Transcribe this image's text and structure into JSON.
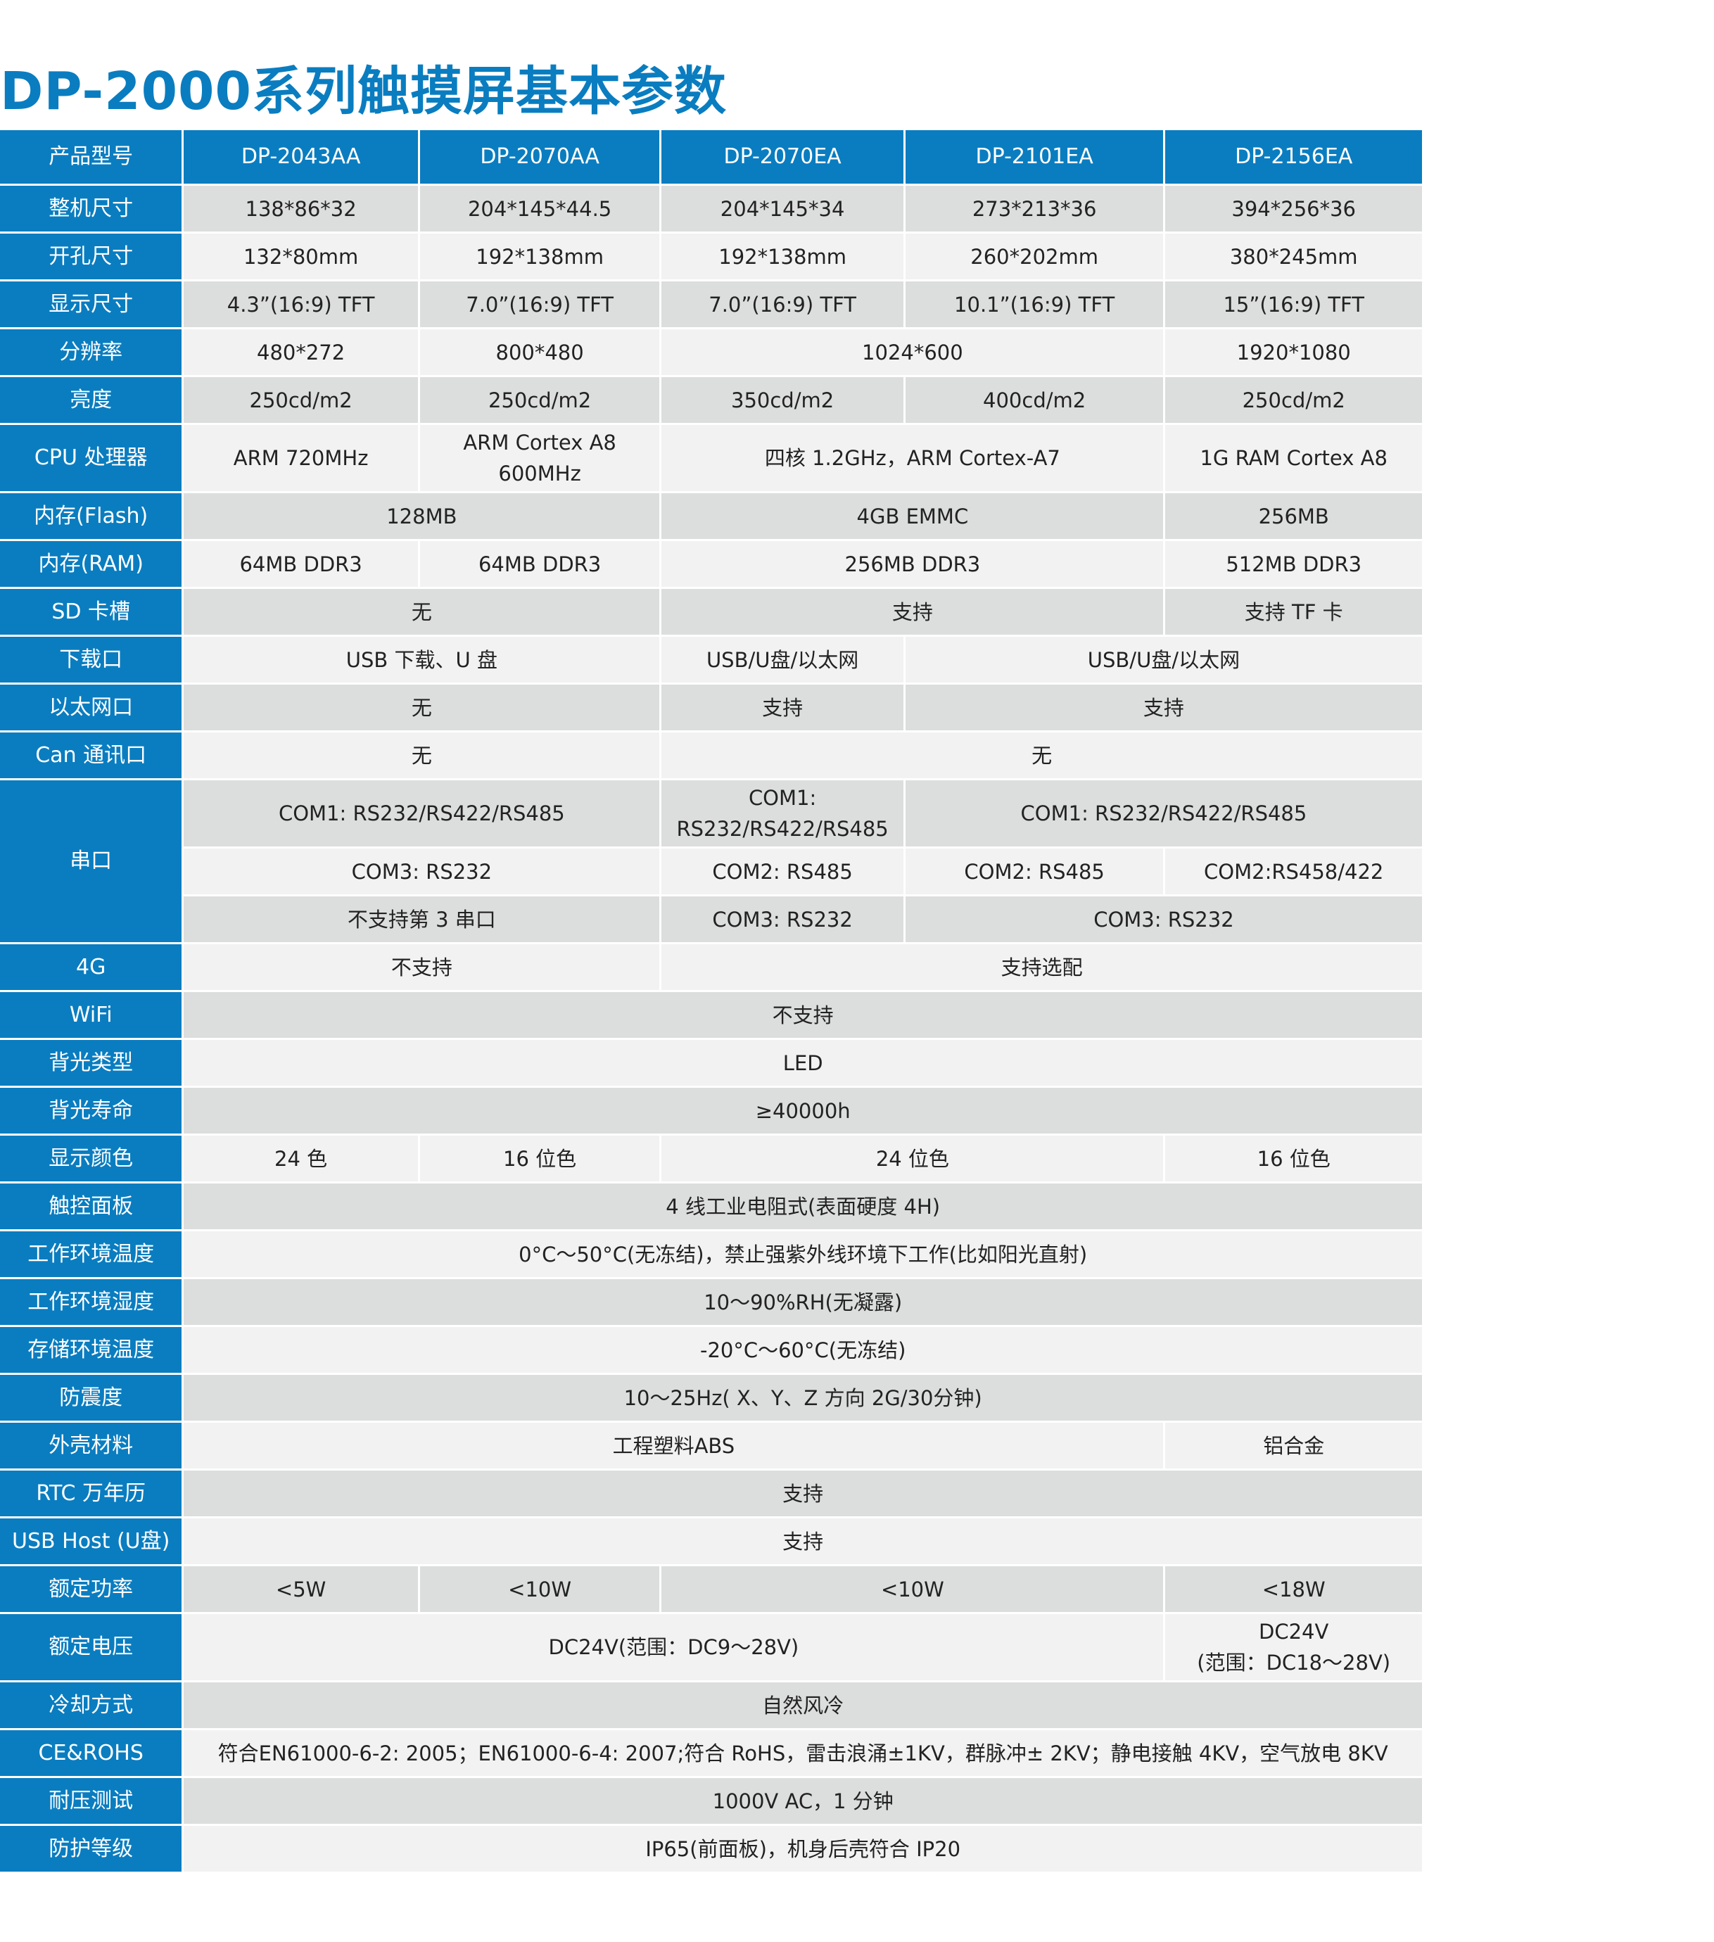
{
  "title": "DP-2000系列触摸屏基本参数",
  "colors": {
    "accent": "#0a7dc0",
    "row_dark": "#dcdddd",
    "row_light": "#f2f2f2"
  },
  "header": {
    "label": "产品型号",
    "models": [
      "DP-2043AA",
      "DP-2070AA",
      "DP-2070EA",
      "DP-2101EA",
      "DP-2156EA"
    ]
  },
  "rows": [
    {
      "label": "整机尺寸",
      "cells": [
        {
          "t": "138*86*32",
          "c": 1
        },
        {
          "t": "204*145*44.5",
          "c": 1
        },
        {
          "t": "204*145*34",
          "c": 1
        },
        {
          "t": "273*213*36",
          "c": 1
        },
        {
          "t": "394*256*36",
          "c": 1
        }
      ]
    },
    {
      "label": "开孔尺寸",
      "cells": [
        {
          "t": "132*80mm",
          "c": 1
        },
        {
          "t": "192*138mm",
          "c": 1
        },
        {
          "t": "192*138mm",
          "c": 1
        },
        {
          "t": "260*202mm",
          "c": 1
        },
        {
          "t": "380*245mm",
          "c": 1
        }
      ]
    },
    {
      "label": "显示尺寸",
      "cells": [
        {
          "t": "4.3”(16:9) TFT",
          "c": 1
        },
        {
          "t": "7.0”(16:9) TFT",
          "c": 1
        },
        {
          "t": "7.0”(16:9) TFT",
          "c": 1
        },
        {
          "t": "10.1”(16:9) TFT",
          "c": 1
        },
        {
          "t": "15”(16:9) TFT",
          "c": 1
        }
      ]
    },
    {
      "label": "分辨率",
      "cells": [
        {
          "t": "480*272",
          "c": 1
        },
        {
          "t": "800*480",
          "c": 1
        },
        {
          "t": "1024*600",
          "c": 2
        },
        {
          "t": "1920*1080",
          "c": 1
        }
      ]
    },
    {
      "label": "亮度",
      "cells": [
        {
          "t": "250cd/m2",
          "c": 1
        },
        {
          "t": "250cd/m2",
          "c": 1
        },
        {
          "t": "350cd/m2",
          "c": 1
        },
        {
          "t": "400cd/m2",
          "c": 1
        },
        {
          "t": "250cd/m2",
          "c": 1
        }
      ]
    },
    {
      "label": "CPU 处理器",
      "tall": true,
      "cells": [
        {
          "t": "ARM   720MHz",
          "c": 1
        },
        {
          "t": "ARM   Cortex   A8\n600MHz",
          "c": 1
        },
        {
          "t": "四核 1.2GHz，ARM Cortex-A7",
          "c": 2
        },
        {
          "t": "1G RAM Cortex A8",
          "c": 1
        }
      ]
    },
    {
      "label": "内存(Flash)",
      "cells": [
        {
          "t": "128MB",
          "c": 2
        },
        {
          "t": "4GB EMMC",
          "c": 2
        },
        {
          "t": "256MB",
          "c": 1
        }
      ]
    },
    {
      "label": "内存(RAM)",
      "cells": [
        {
          "t": "64MB  DDR3",
          "c": 1
        },
        {
          "t": "64MB  DDR3",
          "c": 1
        },
        {
          "t": "256MB  DDR3",
          "c": 2
        },
        {
          "t": "512MB  DDR3",
          "c": 1
        }
      ]
    },
    {
      "label": "SD 卡槽",
      "cells": [
        {
          "t": "无",
          "c": 2
        },
        {
          "t": "支持",
          "c": 2
        },
        {
          "t": "支持 TF 卡",
          "c": 1
        }
      ]
    },
    {
      "label": "下载口",
      "cells": [
        {
          "t": "USB 下载、U 盘",
          "c": 2
        },
        {
          "t": "USB/U盘/以太网",
          "c": 1
        },
        {
          "t": "USB/U盘/以太网",
          "c": 2
        }
      ]
    },
    {
      "label": "以太网口",
      "cells": [
        {
          "t": "无",
          "c": 2
        },
        {
          "t": "支持",
          "c": 1
        },
        {
          "t": "支持",
          "c": 2
        }
      ]
    },
    {
      "label": "Can 通讯口",
      "cells": [
        {
          "t": "无",
          "c": 2
        },
        {
          "t": "无",
          "c": 3
        }
      ]
    },
    {
      "label": "串口",
      "rowspan": 3,
      "tall": true,
      "cells": [
        {
          "t": "COM1:  RS232/RS422/RS485",
          "c": 2
        },
        {
          "t": "COM1:\nRS232/RS422/RS485",
          "c": 1
        },
        {
          "t": "COM1:  RS232/RS422/RS485",
          "c": 2
        }
      ]
    },
    {
      "cells": [
        {
          "t": "COM3:   RS232",
          "c": 2
        },
        {
          "t": "COM2:   RS485",
          "c": 1
        },
        {
          "t": "COM2:   RS485",
          "c": 1
        },
        {
          "t": "COM2:RS458/422",
          "c": 1
        }
      ]
    },
    {
      "cells": [
        {
          "t": "不支持第 3 串口",
          "c": 2
        },
        {
          "t": "COM3:   RS232",
          "c": 1
        },
        {
          "t": "COM3:   RS232",
          "c": 2
        }
      ]
    },
    {
      "label": "4G",
      "cells": [
        {
          "t": "不支持",
          "c": 2
        },
        {
          "t": "支持选配",
          "c": 3
        }
      ]
    },
    {
      "label": "WiFi",
      "cells": [
        {
          "t": "不支持",
          "c": 5
        }
      ]
    },
    {
      "label": "背光类型",
      "cells": [
        {
          "t": "LED",
          "c": 5
        }
      ]
    },
    {
      "label": "背光寿命",
      "cells": [
        {
          "t": "≥40000h",
          "c": 5
        }
      ]
    },
    {
      "label": "显示颜色",
      "cells": [
        {
          "t": "24 色",
          "c": 1
        },
        {
          "t": "16 位色",
          "c": 1
        },
        {
          "t": "24 位色",
          "c": 2
        },
        {
          "t": "16 位色",
          "c": 1
        }
      ]
    },
    {
      "label": "触控面板",
      "cells": [
        {
          "t": "4 线工业电阻式(表面硬度 4H)",
          "c": 5
        }
      ]
    },
    {
      "label": "工作环境温度",
      "cells": [
        {
          "t": "0°C～50°C(无冻结)，禁止强紫外线环境下工作(比如阳光直射)",
          "c": 5
        }
      ]
    },
    {
      "label": "工作环境湿度",
      "cells": [
        {
          "t": "10～90%RH(无凝露)",
          "c": 5
        }
      ]
    },
    {
      "label": "存储环境温度",
      "cells": [
        {
          "t": "-20°C～60°C(无冻结)",
          "c": 5
        }
      ]
    },
    {
      "label": "防震度",
      "cells": [
        {
          "t": "10～25Hz( X、Y、Z 方向 2G/30分钟)",
          "c": 5
        }
      ]
    },
    {
      "label": "外壳材料",
      "cells": [
        {
          "t": "工程塑料ABS",
          "c": 4
        },
        {
          "t": "铝合金",
          "c": 1
        }
      ]
    },
    {
      "label": "RTC 万年历",
      "cells": [
        {
          "t": "支持",
          "c": 5
        }
      ]
    },
    {
      "label": "USB Host (U盘)",
      "cells": [
        {
          "t": "支持",
          "c": 5
        }
      ]
    },
    {
      "label": "额定功率",
      "cells": [
        {
          "t": "<5W",
          "c": 1
        },
        {
          "t": "<10W",
          "c": 1
        },
        {
          "t": "<10W",
          "c": 2
        },
        {
          "t": "<18W",
          "c": 1
        }
      ]
    },
    {
      "label": "额定电压",
      "tall": true,
      "cells": [
        {
          "t": "DC24V(范围：DC9～28V)",
          "c": 4
        },
        {
          "t": "DC24V\n(范围：DC18～28V)",
          "c": 1
        }
      ]
    },
    {
      "label": "冷却方式",
      "cells": [
        {
          "t": "自然风冷",
          "c": 5
        }
      ]
    },
    {
      "label": "CE&ROHS",
      "cells": [
        {
          "t": "符合EN61000-6-2: 2005；EN61000-6-4: 2007;符合 RoHS，雷击浪涌±1KV，群脉冲± 2KV；静电接触 4KV，空气放电 8KV",
          "c": 5
        }
      ]
    },
    {
      "label": "耐压测试",
      "cells": [
        {
          "t": "1000V AC，1 分钟",
          "c": 5
        }
      ]
    },
    {
      "label": "防护等级",
      "cells": [
        {
          "t": "IP65(前面板)，机身后壳符合 IP20",
          "c": 5
        }
      ]
    }
  ]
}
